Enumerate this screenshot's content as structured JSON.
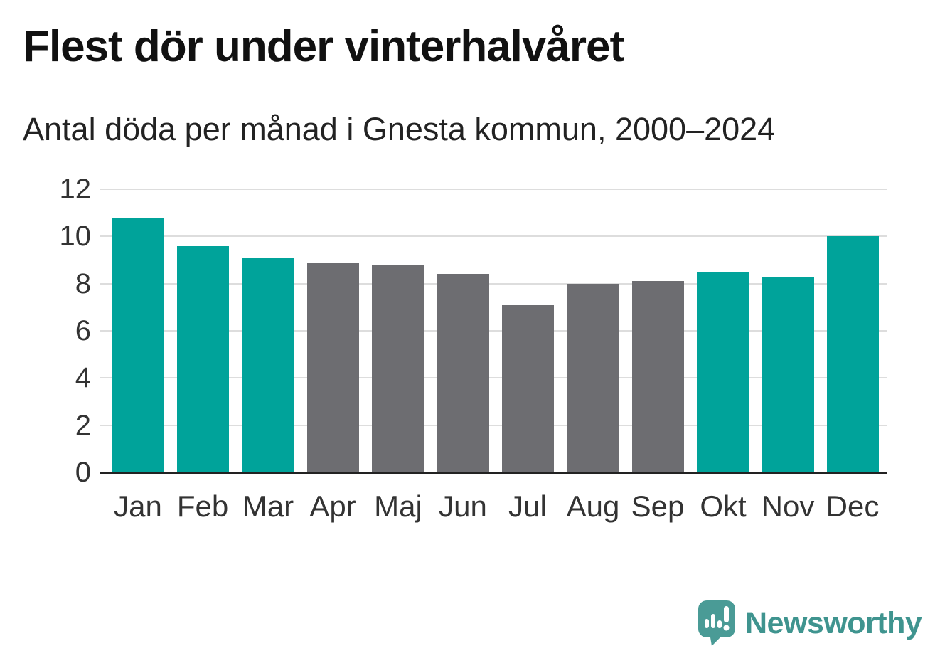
{
  "header": {
    "title": "Flest dör under vinterhalvåret",
    "subtitle": "Antal döda per månad i Gnesta kommun, 2000–2024"
  },
  "colors": {
    "highlight": "#00a39a",
    "default": "#6d6d71",
    "grid": "#dddddd",
    "axis": "#222222",
    "tick_label": "#333333",
    "logo": "#4a9b96",
    "logo_text": "#3f948f"
  },
  "chart_data": {
    "type": "bar",
    "title": "Flest dör under vinterhalvåret",
    "subtitle": "Antal döda per månad i Gnesta kommun, 2000–2024",
    "categories": [
      "Jan",
      "Feb",
      "Mar",
      "Apr",
      "Maj",
      "Jun",
      "Jul",
      "Aug",
      "Sep",
      "Okt",
      "Nov",
      "Dec"
    ],
    "values": [
      10.8,
      9.6,
      9.1,
      8.9,
      8.8,
      8.4,
      7.1,
      8.0,
      8.1,
      8.5,
      8.3,
      10.0
    ],
    "bar_color_keys": [
      "highlight",
      "highlight",
      "highlight",
      "default",
      "default",
      "default",
      "default",
      "default",
      "default",
      "highlight",
      "highlight",
      "highlight"
    ],
    "xlabel": "",
    "ylabel": "",
    "ylim": [
      0,
      12
    ],
    "yticks": [
      0,
      2,
      4,
      6,
      8,
      10,
      12
    ],
    "grid": "horizontal-only",
    "legend": "none"
  },
  "branding": {
    "logo_text": "Newsworthy",
    "logo_icon": "newsworthy-speech-bubble-chart-icon"
  }
}
